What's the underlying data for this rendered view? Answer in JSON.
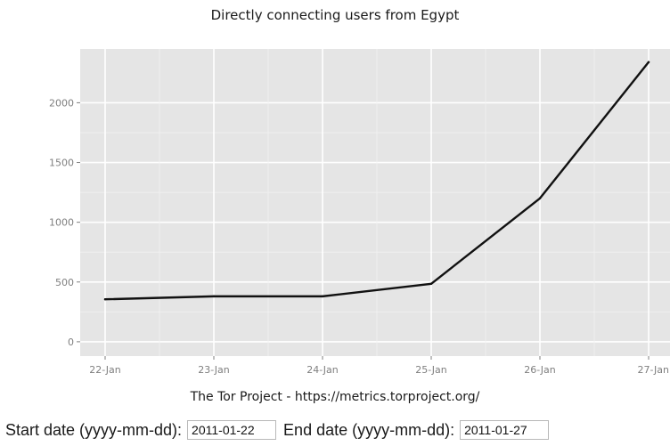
{
  "chart_data": {
    "type": "line",
    "title": "Directly connecting users from Egypt",
    "xlabel": "",
    "ylabel": "",
    "x": [
      "22-Jan",
      "23-Jan",
      "24-Jan",
      "25-Jan",
      "26-Jan",
      "27-Jan"
    ],
    "yticks": [
      0,
      500,
      1000,
      1500,
      2000
    ],
    "ylim": [
      -120,
      2450
    ],
    "grid": true,
    "series": [
      {
        "values": [
          355,
          380,
          380,
          485,
          1200,
          2340
        ],
        "color": "#111111"
      }
    ]
  },
  "credit": "The Tor Project - https://metrics.torproject.org/",
  "form": {
    "start_label": "Start date (yyyy-mm-dd):",
    "start_value": "2011-01-22",
    "end_label": "End date (yyyy-mm-dd):",
    "end_value": "2011-01-27"
  },
  "colors": {
    "panel": "#e5e5e5",
    "grid": "#ffffff",
    "tick_text": "#7f7f7f",
    "line": "#111111"
  }
}
